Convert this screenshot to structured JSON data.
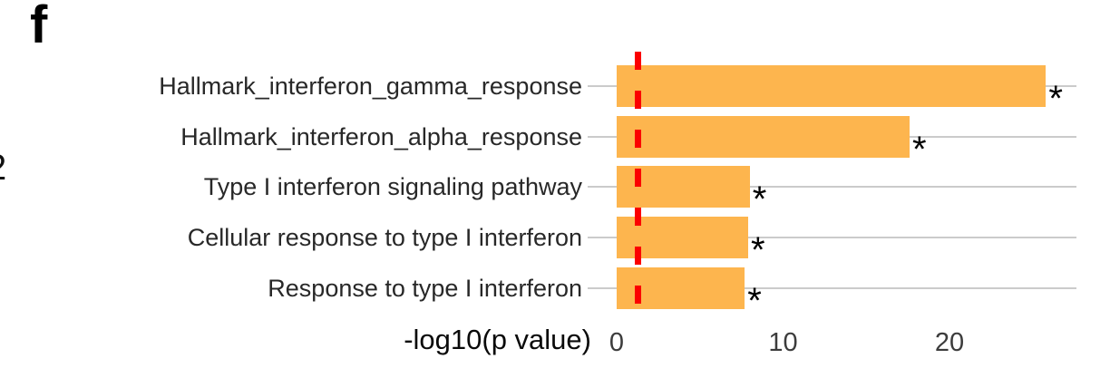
{
  "panel_label": "f",
  "clipped_left_text": "2",
  "chart_data": {
    "type": "bar",
    "orientation": "horizontal",
    "title": "",
    "xlabel": "-log10(p value)",
    "ylabel": "",
    "categories": [
      "Hallmark_interferon_gamma_response",
      "Hallmark_interferon_alpha_response",
      "Type I interferon signaling pathway",
      "Cellular response to type I interferon",
      "Response to type I interferon"
    ],
    "values": [
      25.8,
      17.6,
      8.0,
      7.9,
      7.7
    ],
    "significance_markers": [
      "*",
      "*",
      "*",
      "*",
      "*"
    ],
    "x_ticks": [
      "0",
      "10",
      "20"
    ],
    "x_tick_values": [
      0,
      10,
      20
    ],
    "xlim": [
      0,
      27.6
    ],
    "bar_color": "#FDB54E",
    "gridline_color": "#cbcbcb",
    "threshold_line": {
      "value": 1.3,
      "style": "dashed",
      "color": "#FB0000"
    },
    "legend": null,
    "grid": "horizontal-row-lines"
  }
}
